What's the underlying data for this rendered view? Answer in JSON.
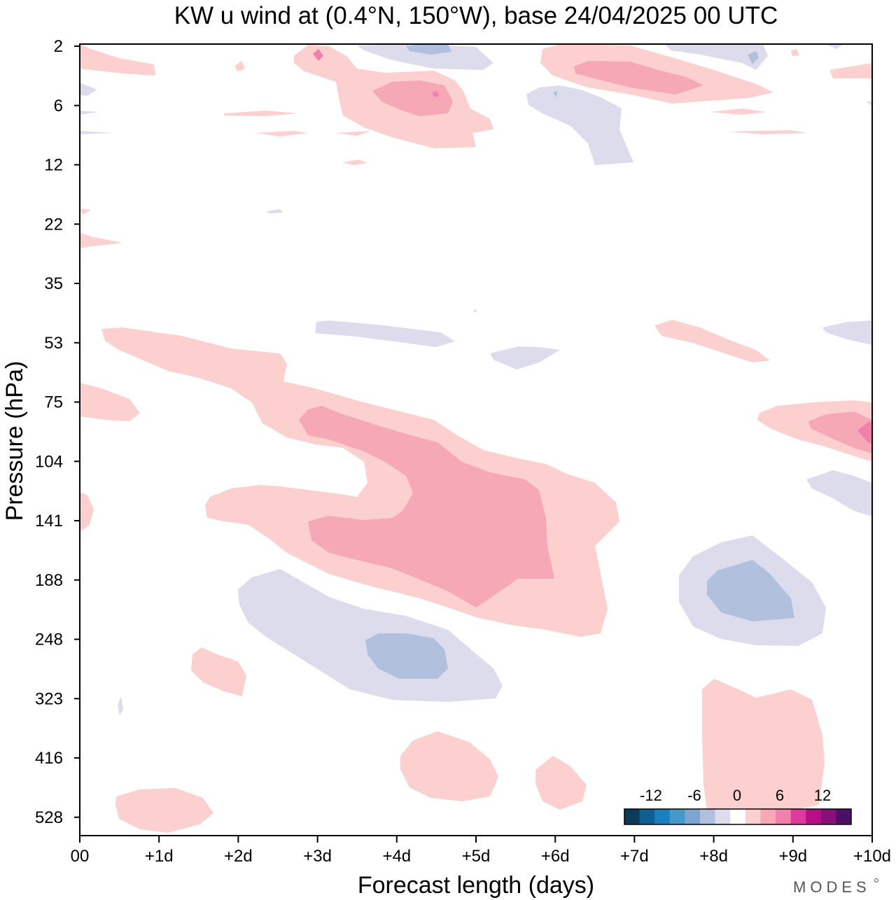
{
  "chart_data": {
    "type": "heatmap",
    "title": "KW u wind at (0.4°N, 150°W),  base 24/04/2025  00 UTC",
    "xlabel": "Forecast length (days)",
    "ylabel": "Pressure (hPa)",
    "x_ticks": [
      "00",
      "+1d",
      "+2d",
      "+3d",
      "+4d",
      "+5d",
      "+6d",
      "+7d",
      "+8d",
      "+9d",
      "+10d"
    ],
    "xlim": [
      0,
      10
    ],
    "y_ticks": [
      "2",
      "6",
      "12",
      "22",
      "35",
      "53",
      "75",
      "104",
      "141",
      "188",
      "248",
      "323",
      "416",
      "528"
    ],
    "colorbar": {
      "tick_labels": [
        "-12",
        "-6",
        "0",
        "6",
        "12"
      ],
      "colors": [
        "#0b3a5a",
        "#0f5f91",
        "#1a7fbf",
        "#4698c9",
        "#7ca6d2",
        "#b0c0dd",
        "#dcdcec",
        "#ffffff",
        "#fbd0cf",
        "#f7a8b6",
        "#f080ac",
        "#de3a9e",
        "#b80f86",
        "#881079",
        "#4e0f66"
      ]
    },
    "levels": {
      "neg1": "#dcdcec",
      "neg2": "#b0c0dd",
      "neg3": "#7ca6d2",
      "pos1": "#fbd0cf",
      "pos2": "#f7a8b6",
      "pos3": "#f080ac"
    },
    "brand": "MODES"
  }
}
